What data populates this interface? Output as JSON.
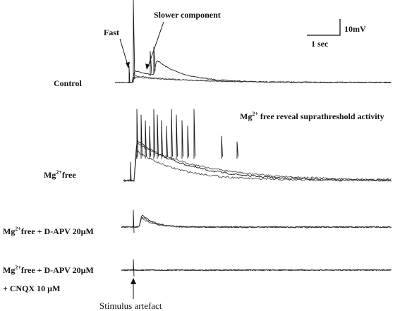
{
  "labels": {
    "fast": "Fast",
    "slower_component": "Slower component",
    "scale_voltage": "10mV",
    "scale_time": "1 sec",
    "control": "Control",
    "mg_note_prefix": "Mg",
    "mg_note_sup": "2+",
    "mg_note_rest": " free reveal suprathreshold  activity",
    "mg_free_prefix": "Mg",
    "mg_free_sup": "2+",
    "mg_free_rest": "free",
    "apv_prefix": "Mg",
    "apv_sup": "2+",
    "apv_rest": "free + D-APV 20µM",
    "cnqx_prefix": "Mg",
    "cnqx_sup": "2+",
    "cnqx_rest": "free + D-APV 20µM",
    "cnqx_line2": "+ CNQX 10 µM",
    "stimulus": "Stimulus artefact"
  },
  "panels": [
    {
      "condition": "Control",
      "sweeps": 3
    },
    {
      "condition": "Mg2+free",
      "sweeps": 3
    },
    {
      "condition": "Mg2+free + D-APV 20µM",
      "sweeps": 3
    },
    {
      "condition": "Mg2+free + D-APV 20µM + CNQX 10 µM",
      "sweeps": 3
    }
  ]
}
